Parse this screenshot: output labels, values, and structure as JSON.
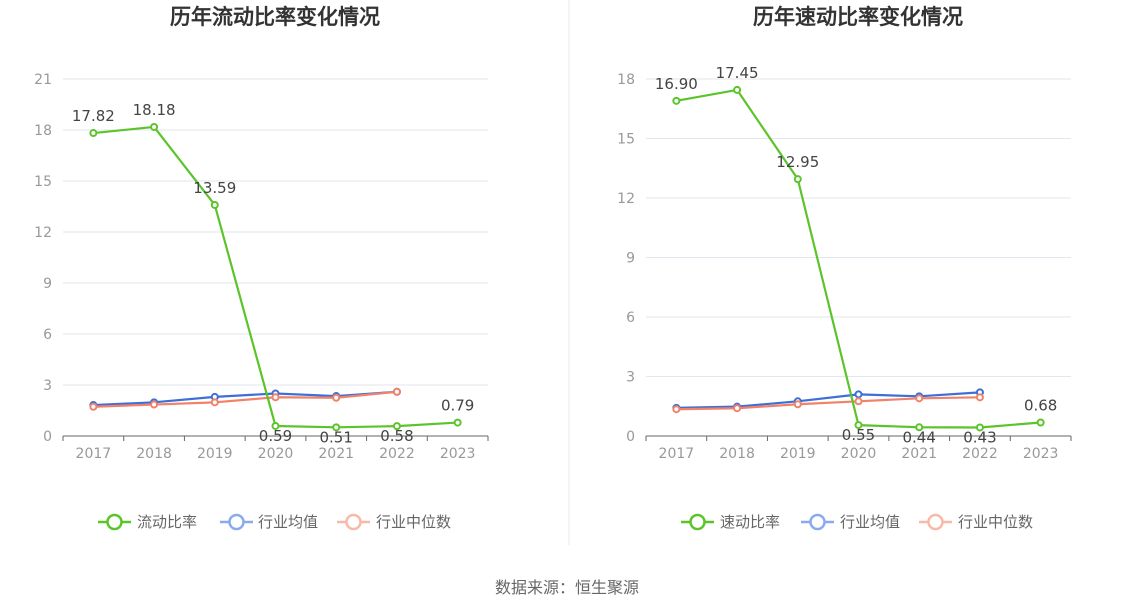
{
  "colors": {
    "main_series": "#5bc42b",
    "industry_avg": "#3d6fd6",
    "industry_median": "#f0826a",
    "legend_avg": "#8aaaf0",
    "legend_median": "#f8b9a8",
    "grid": "#e3e6ee",
    "axis": "#666666"
  },
  "source": "数据来源：恒生聚源",
  "chart_data": [
    {
      "type": "line",
      "title": "历年流动比率变化情况",
      "categories": [
        "2017",
        "2018",
        "2019",
        "2020",
        "2021",
        "2022",
        "2023"
      ],
      "ylim": [
        0,
        21
      ],
      "yticks": [
        0,
        3,
        6,
        9,
        12,
        15,
        18,
        21
      ],
      "grid": true,
      "legend_position": "bottom",
      "series": [
        {
          "name": "流动比率",
          "values": [
            17.82,
            18.18,
            13.59,
            0.59,
            0.51,
            0.58,
            0.79
          ],
          "labels": [
            "17.82",
            "18.18",
            "13.59",
            "0.59",
            "0.51",
            "0.58",
            "0.79"
          ]
        },
        {
          "name": "行业均值",
          "values": [
            1.82,
            1.98,
            2.3,
            2.5,
            2.35,
            2.6,
            null
          ]
        },
        {
          "name": "行业中位数",
          "values": [
            1.72,
            1.85,
            1.98,
            2.28,
            2.25,
            2.6,
            null
          ]
        }
      ]
    },
    {
      "type": "line",
      "title": "历年速动比率变化情况",
      "categories": [
        "2017",
        "2018",
        "2019",
        "2020",
        "2021",
        "2022",
        "2023"
      ],
      "ylim": [
        0,
        18
      ],
      "yticks": [
        0,
        3,
        6,
        9,
        12,
        15,
        18
      ],
      "grid": true,
      "legend_position": "bottom",
      "series": [
        {
          "name": "速动比率",
          "values": [
            16.9,
            17.45,
            12.95,
            0.55,
            0.44,
            0.43,
            0.68
          ],
          "labels": [
            "16.90",
            "17.45",
            "12.95",
            "0.55",
            "0.44",
            "0.43",
            "0.68"
          ]
        },
        {
          "name": "行业均值",
          "values": [
            1.42,
            1.48,
            1.75,
            2.1,
            2.0,
            2.2,
            null
          ]
        },
        {
          "name": "行业中位数",
          "values": [
            1.35,
            1.4,
            1.6,
            1.75,
            1.9,
            1.95,
            null
          ]
        }
      ]
    }
  ]
}
